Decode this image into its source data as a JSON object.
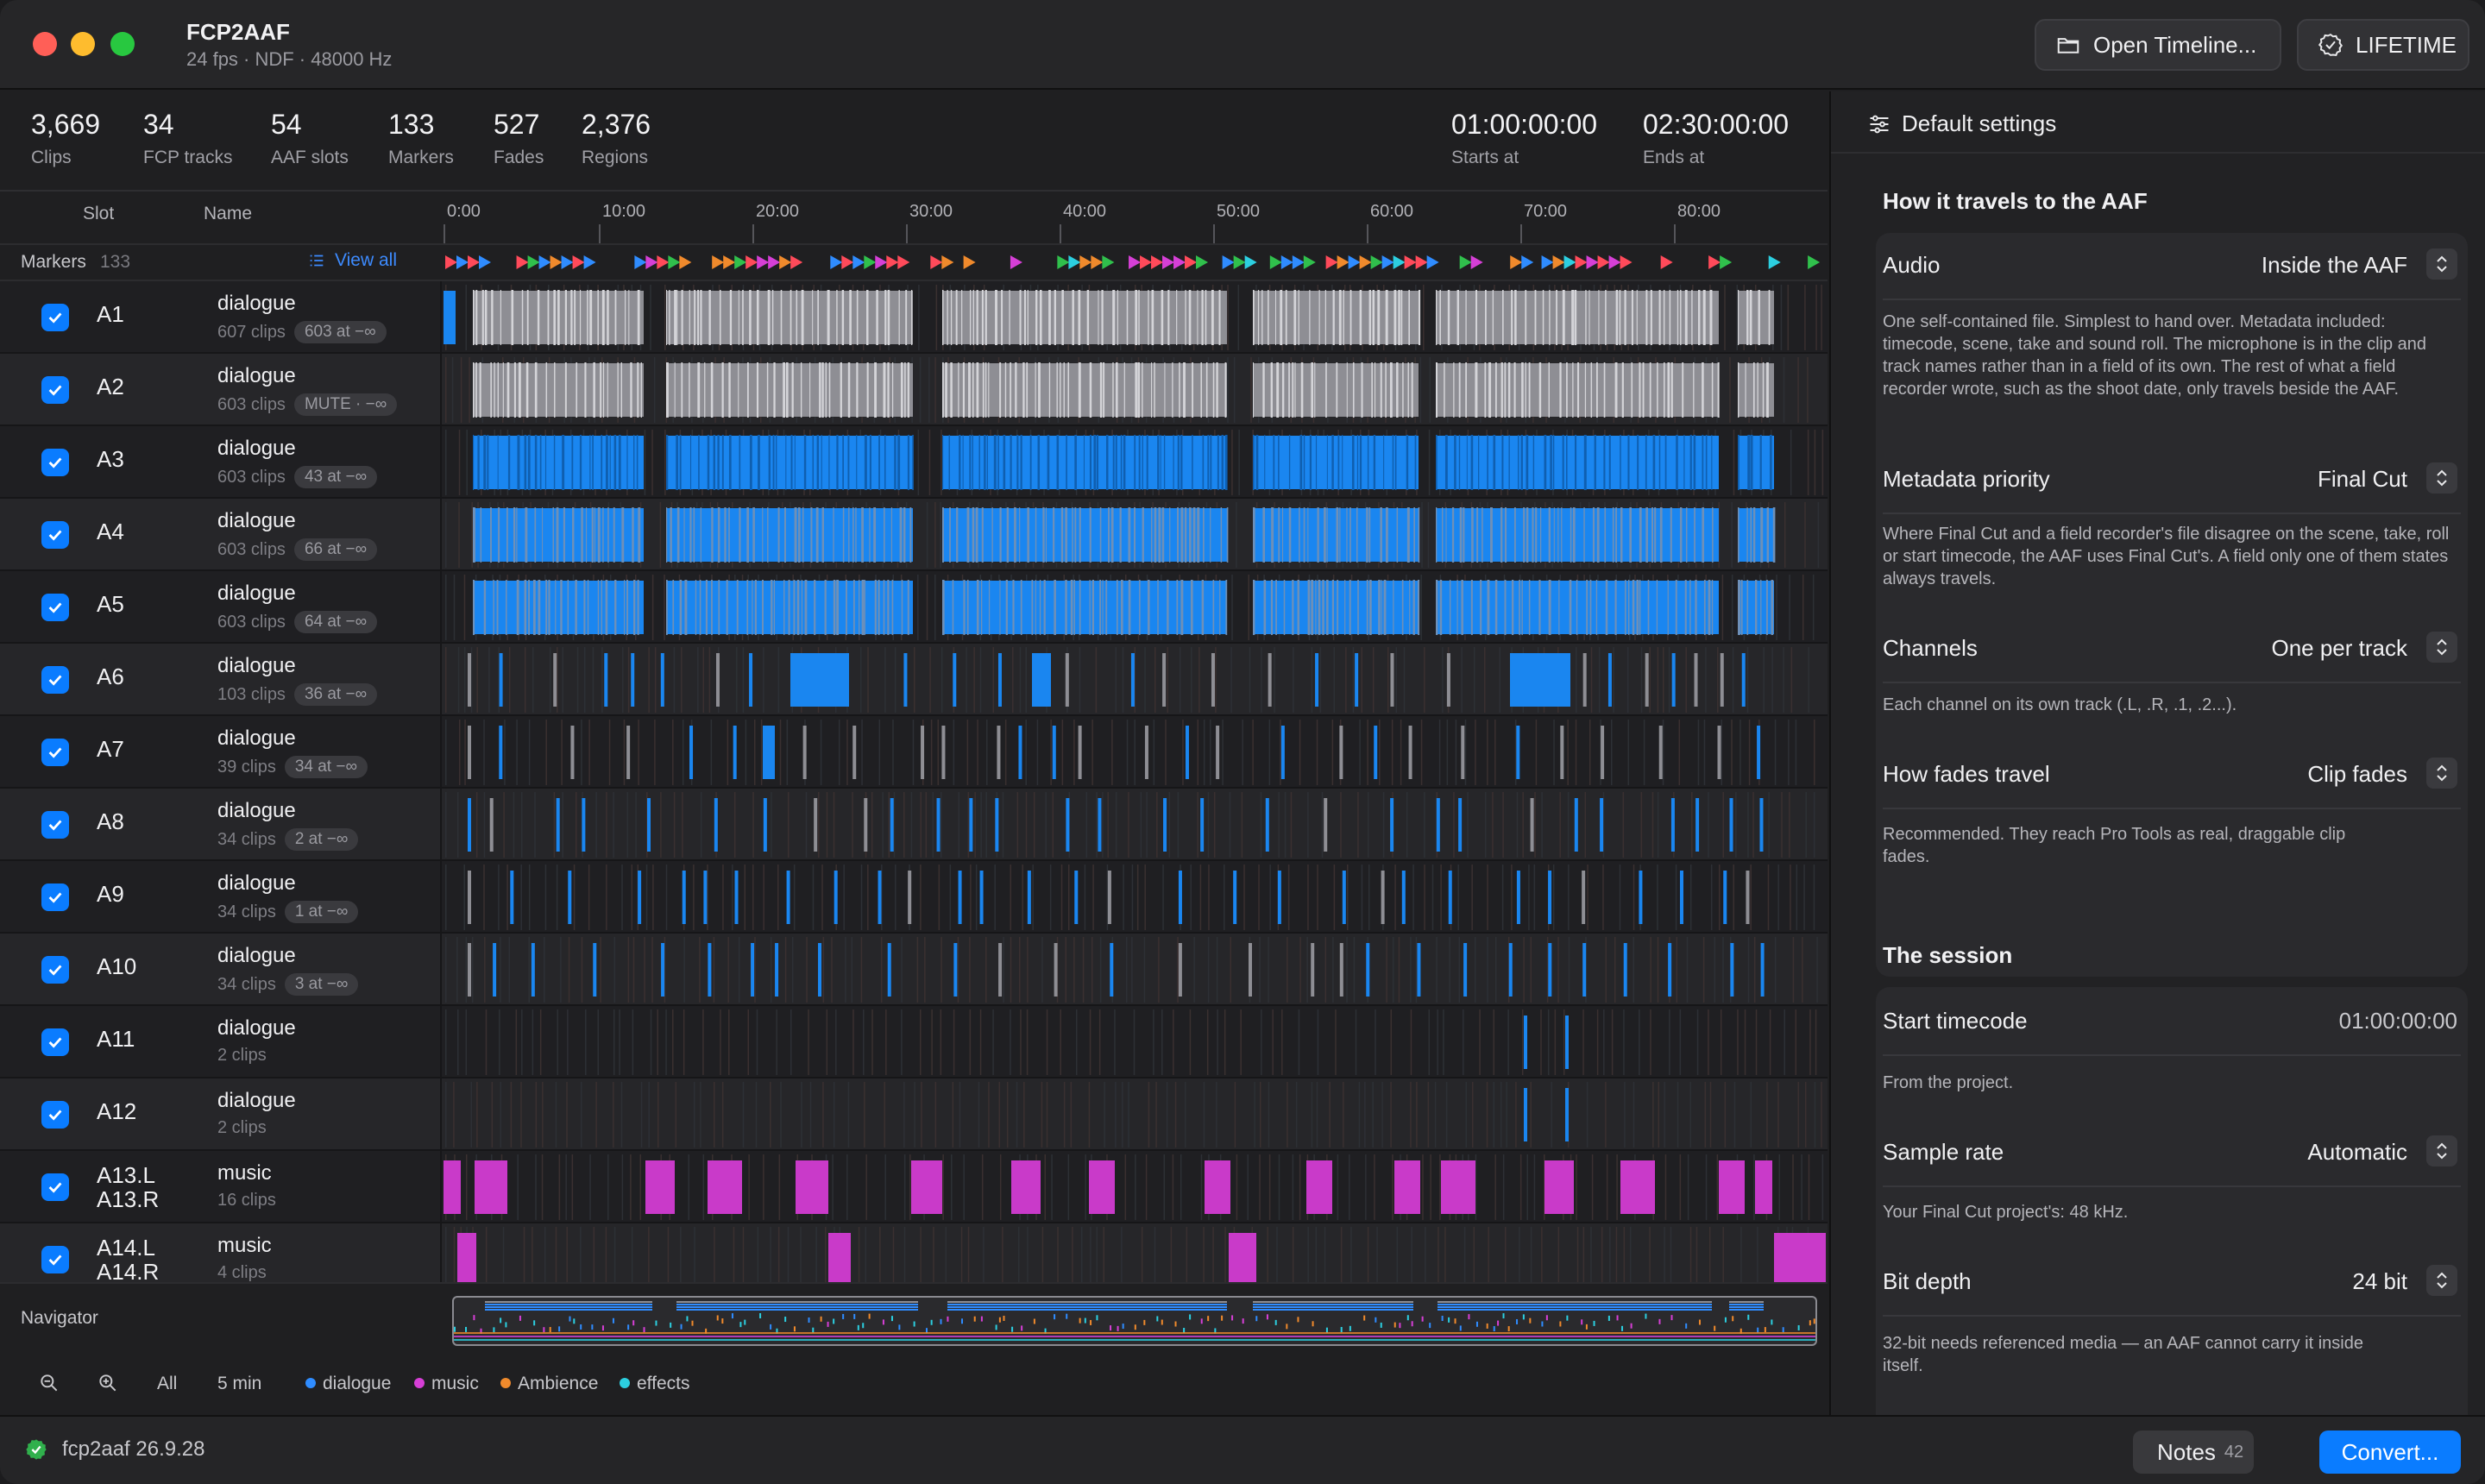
{
  "app": {
    "title": "FCP2AAF",
    "subtitle": "24 fps · NDF · 48000 Hz"
  },
  "toolbar": {
    "open_label": "Open Timeline...",
    "lifetime_label": "LIFETIME"
  },
  "stats": [
    {
      "value": "3,669",
      "label": "Clips"
    },
    {
      "value": "34",
      "label": "FCP tracks"
    },
    {
      "value": "54",
      "label": "AAF slots"
    },
    {
      "value": "133",
      "label": "Markers"
    },
    {
      "value": "527",
      "label": "Fades"
    },
    {
      "value": "2,376",
      "label": "Regions"
    }
  ],
  "timecode": {
    "start": {
      "value": "01:00:00:00",
      "label": "Starts at"
    },
    "end": {
      "value": "02:30:00:00",
      "label": "Ends at"
    }
  },
  "columns": {
    "slot": "Slot",
    "name": "Name"
  },
  "ruler": [
    "0:00",
    "10:00",
    "20:00",
    "30:00",
    "40:00",
    "50:00",
    "60:00",
    "70:00",
    "80:00"
  ],
  "markers": {
    "label": "Markers",
    "count": "133",
    "view_all": "View all"
  },
  "tracks": [
    {
      "slot": "A1",
      "name": "dialogue",
      "clips": "607 clips",
      "pill": "603 at −∞"
    },
    {
      "slot": "A2",
      "name": "dialogue",
      "clips": "603 clips",
      "pill": "MUTE · −∞"
    },
    {
      "slot": "A3",
      "name": "dialogue",
      "clips": "603 clips",
      "pill": "43 at −∞"
    },
    {
      "slot": "A4",
      "name": "dialogue",
      "clips": "603 clips",
      "pill": "66 at −∞"
    },
    {
      "slot": "A5",
      "name": "dialogue",
      "clips": "603 clips",
      "pill": "64 at −∞"
    },
    {
      "slot": "A6",
      "name": "dialogue",
      "clips": "103 clips",
      "pill": "36 at −∞"
    },
    {
      "slot": "A7",
      "name": "dialogue",
      "clips": "39 clips",
      "pill": "34 at −∞"
    },
    {
      "slot": "A8",
      "name": "dialogue",
      "clips": "34 clips",
      "pill": "2 at −∞"
    },
    {
      "slot": "A9",
      "name": "dialogue",
      "clips": "34 clips",
      "pill": "1 at −∞"
    },
    {
      "slot": "A10",
      "name": "dialogue",
      "clips": "34 clips",
      "pill": "3 at −∞"
    },
    {
      "slot": "A11",
      "name": "dialogue",
      "clips": "2 clips",
      "pill": ""
    },
    {
      "slot": "A12",
      "name": "dialogue",
      "clips": "2 clips",
      "pill": ""
    },
    {
      "slot": "A13.L",
      "slot2": "A13.R",
      "name": "music",
      "clips": "16 clips",
      "pill": ""
    },
    {
      "slot": "A14.L",
      "slot2": "A14.R",
      "name": "music",
      "clips": "4 clips",
      "pill": ""
    }
  ],
  "navigator": {
    "label": "Navigator",
    "all": "All",
    "zoom": "5 min",
    "legend": [
      {
        "name": "dialogue",
        "color": "#2f8cff"
      },
      {
        "name": "music",
        "color": "#d63fd6"
      },
      {
        "name": "Ambience",
        "color": "#f08a2c"
      },
      {
        "name": "effects",
        "color": "#2ccfe0"
      }
    ]
  },
  "colors": {
    "accent": "#0a7cff",
    "dialogue_clip": "#1a86f0",
    "muted_clip": "#9c9ca2",
    "music_clip": "#c93ac9"
  },
  "status": {
    "version": "fcp2aaf 26.9.28",
    "notes_label": "Notes",
    "notes_count": "42",
    "convert_label": "Convert..."
  },
  "panel": {
    "defaults_label": "Default settings",
    "travel_title": "How it travels to the AAF",
    "travel_rows": [
      {
        "label": "Audio",
        "value": "Inside the AAF",
        "desc": "One self-contained file. Simplest to hand over. Metadata included: timecode, scene, take and sound roll. The microphone is in the clip and track names rather than in a field of its own. The rest of what a field recorder wrote, such as the shoot date, only travels beside the AAF."
      },
      {
        "label": "Metadata priority",
        "value": "Final Cut",
        "desc": "Where Final Cut and a field recorder's file disagree on the scene, take, roll or start timecode, the AAF uses Final Cut's. A field only one of them states always travels."
      },
      {
        "label": "Channels",
        "value": "One per track",
        "desc": "Each channel on its own track (.L, .R, .1, .2...)."
      },
      {
        "label": "How fades travel",
        "value": "Clip fades",
        "desc": "Recommended. They reach Pro Tools as real, draggable clip fades."
      }
    ],
    "session_title": "The session",
    "session_rows": [
      {
        "label": "Start timecode",
        "value": "01:00:00:00",
        "desc": "From the project."
      },
      {
        "label": "Sample rate",
        "value": "Automatic",
        "desc": "Your Final Cut project's: 48 kHz."
      },
      {
        "label": "Bit depth",
        "value": "24 bit",
        "desc": "32-bit needs referenced media — an AAF cannot carry it inside itself."
      }
    ]
  }
}
